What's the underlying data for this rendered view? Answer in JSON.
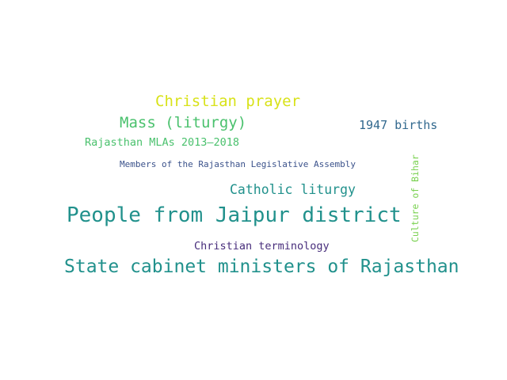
{
  "word_cloud": {
    "words": [
      {
        "text": "Christian prayer",
        "color": "#d8e219"
      },
      {
        "text": "Mass (liturgy)",
        "color": "#4ac16d"
      },
      {
        "text": "1947 births",
        "color": "#31688e"
      },
      {
        "text": "Rajasthan MLAs 2013–2018",
        "color": "#4ac16d"
      },
      {
        "text": "Members of the Rajasthan Legislative Assembly",
        "color": "#3b528b"
      },
      {
        "text": "Culture of Bihar",
        "color": "#7ad151"
      },
      {
        "text": "Catholic liturgy",
        "color": "#21918c"
      },
      {
        "text": "People from Jaipur district",
        "color": "#21918c"
      },
      {
        "text": "Christian terminology",
        "color": "#472d7b"
      },
      {
        "text": "State cabinet ministers of Rajasthan",
        "color": "#21918c"
      }
    ]
  }
}
